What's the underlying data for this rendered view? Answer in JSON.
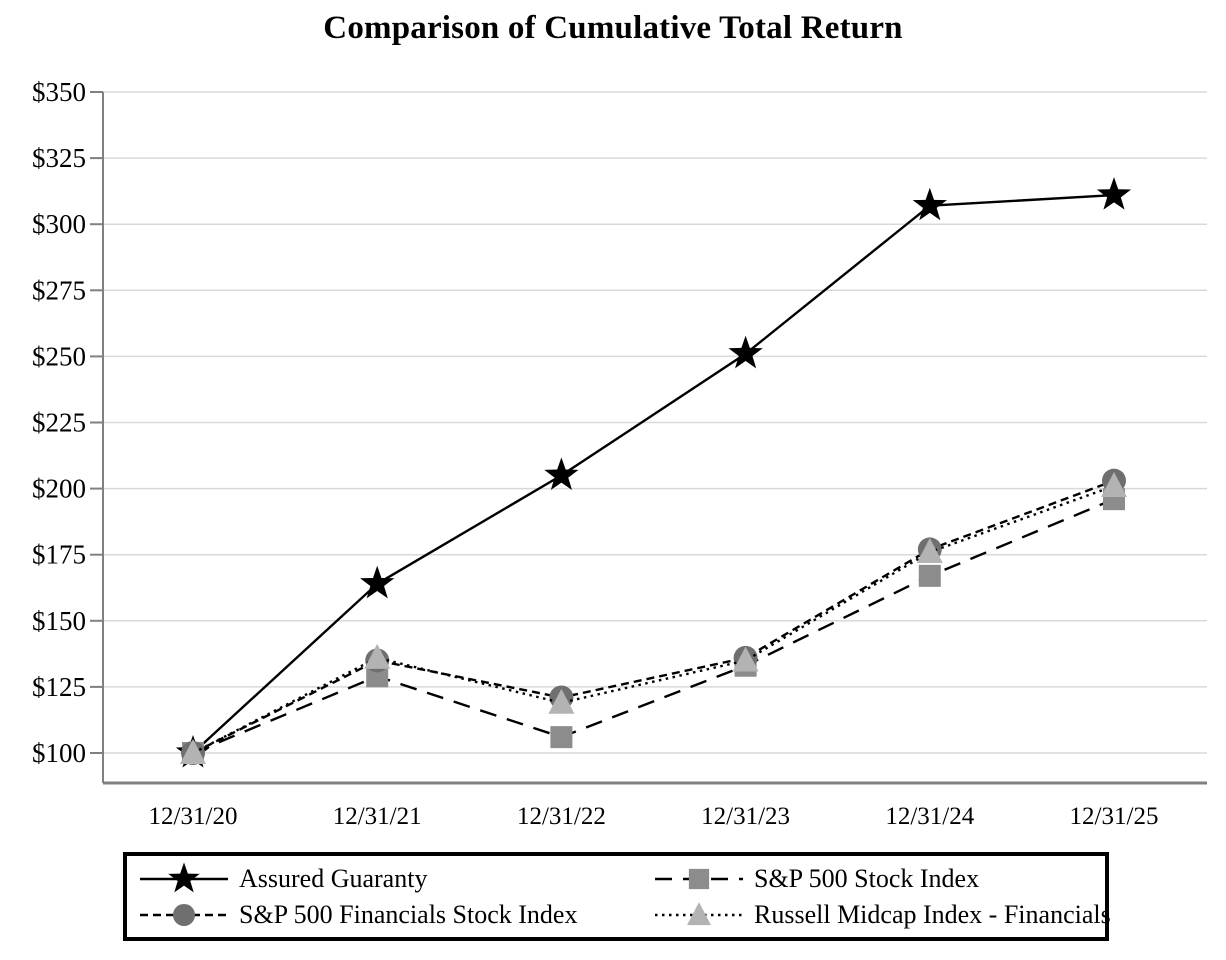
{
  "title": "Comparison of Cumulative Total Return",
  "chart_data": {
    "type": "line",
    "title": "Comparison of Cumulative Total Return",
    "xlabel": "",
    "ylabel": "",
    "x_categories": [
      "12/31/20",
      "12/31/21",
      "12/31/22",
      "12/31/23",
      "12/31/24",
      "12/31/25"
    ],
    "y_ticks": [
      {
        "value": 100,
        "label": "$100"
      },
      {
        "value": 125,
        "label": "$125"
      },
      {
        "value": 150,
        "label": "$150"
      },
      {
        "value": 175,
        "label": "$175"
      },
      {
        "value": 200,
        "label": "$200"
      },
      {
        "value": 225,
        "label": "$225"
      },
      {
        "value": 250,
        "label": "$250"
      },
      {
        "value": 275,
        "label": "$275"
      },
      {
        "value": 300,
        "label": "$300"
      },
      {
        "value": 325,
        "label": "$325"
      },
      {
        "value": 350,
        "label": "$350"
      }
    ],
    "ylim": [
      100,
      350
    ],
    "grid": true,
    "legend_position": "bottom-box",
    "series": [
      {
        "name": "Assured Guaranty",
        "values": [
          100,
          164,
          205,
          251,
          307,
          311
        ],
        "marker": "star",
        "marker_fill": "#000000",
        "line_style": "solid"
      },
      {
        "name": "S&P 500 Stock Index",
        "values": [
          100,
          129,
          106,
          133,
          167,
          196
        ],
        "marker": "square",
        "marker_fill": "#8C8C8C",
        "line_style": "long-dash"
      },
      {
        "name": "S&P 500 Financials Stock Index",
        "values": [
          100,
          135,
          121,
          136,
          177,
          203
        ],
        "marker": "circle",
        "marker_fill": "#6F6F6F",
        "line_style": "dash"
      },
      {
        "name": "Russell Midcap Index - Financials",
        "values": [
          100,
          136,
          119,
          135,
          176,
          201
        ],
        "marker": "triangle",
        "marker_fill": "#B3B3B3",
        "line_style": "dot"
      }
    ],
    "colors": {
      "line": "#000000",
      "axis": "#808080",
      "grid": "#D9D9D9",
      "text": "#000000",
      "legend_border": "#000000"
    }
  }
}
